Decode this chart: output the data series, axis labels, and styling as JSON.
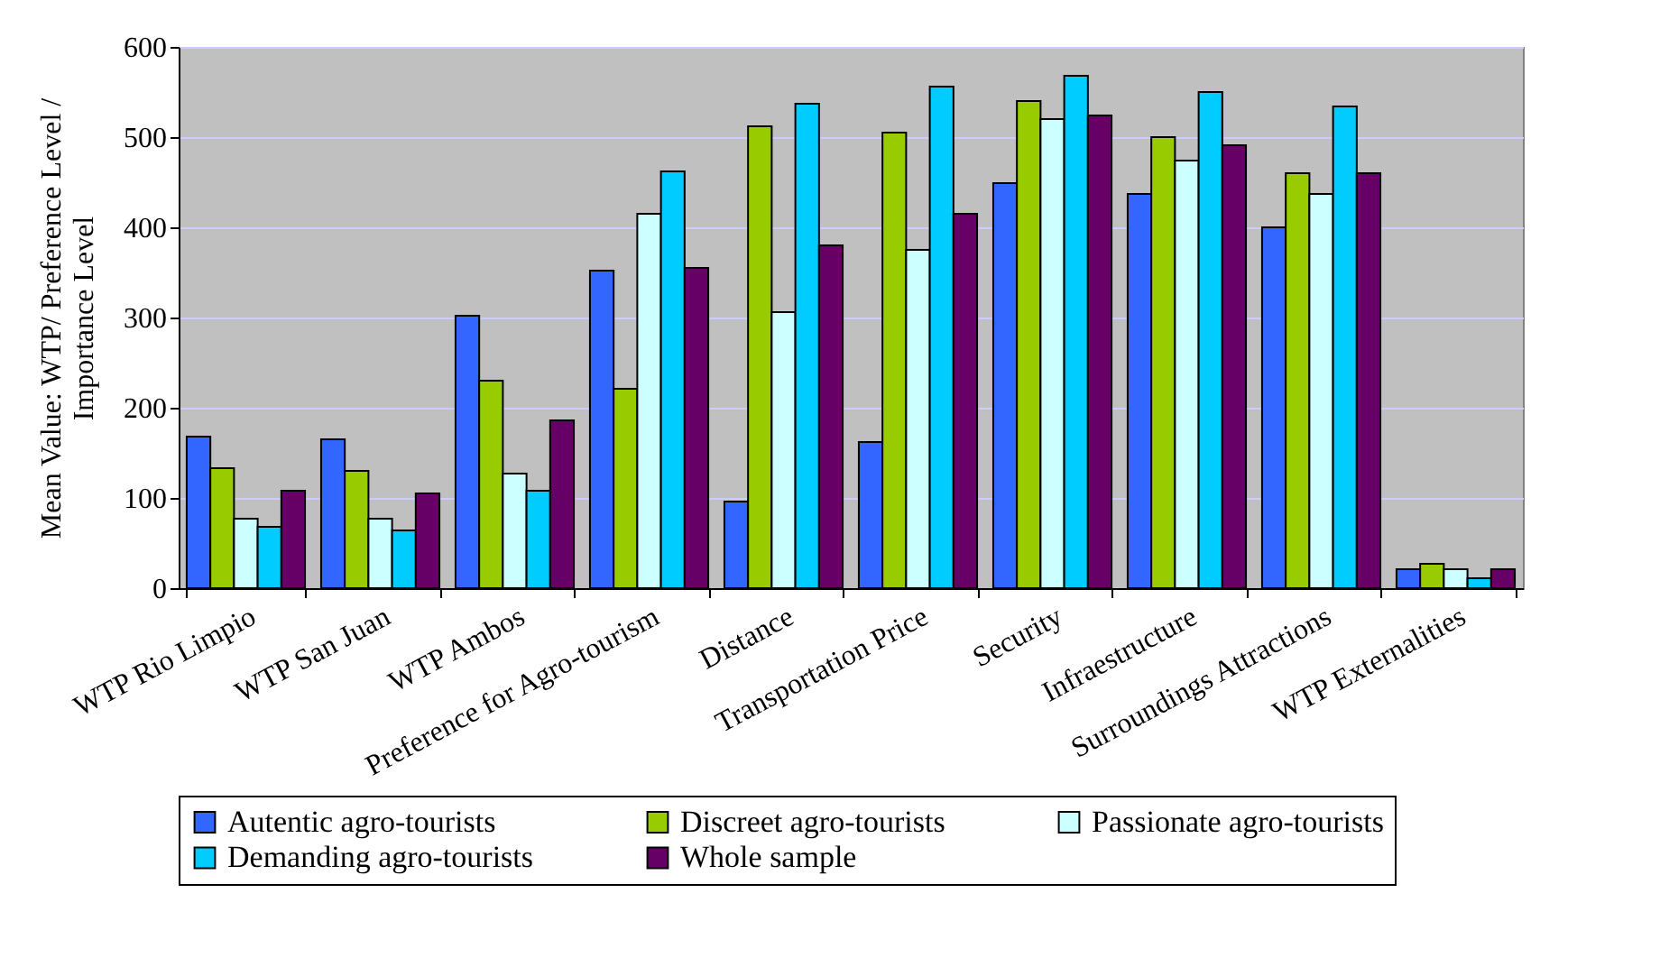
{
  "chart_data": {
    "type": "bar",
    "ylabel": "Mean Value: WTP/ Preference Level / Importance Level",
    "categories": [
      "WTP Rio Limpio",
      "WTP San Juan",
      "WTP Ambos",
      "Preference for Agro-tourism",
      "Distance",
      "Transportation Price",
      "Security",
      "Infraestructure",
      "Surroundings Attractions",
      "WTP Externalities"
    ],
    "series": [
      {
        "name": "Autentic agro-tourists",
        "color": "#3366ff",
        "values": [
          168,
          165,
          302,
          352,
          96,
          162,
          449,
          437,
          400,
          21
        ]
      },
      {
        "name": "Discreet agro-tourists",
        "color": "#99cc00",
        "values": [
          133,
          130,
          230,
          221,
          512,
          505,
          540,
          500,
          460,
          27
        ]
      },
      {
        "name": "Passionate agro-tourists",
        "color": "#ccffff",
        "values": [
          77,
          77,
          127,
          415,
          306,
          375,
          520,
          474,
          437,
          21
        ]
      },
      {
        "name": "Demanding agro-tourists",
        "color": "#00ccff",
        "values": [
          68,
          64,
          108,
          462,
          537,
          556,
          568,
          550,
          534,
          11
        ]
      },
      {
        "name": "Whole sample",
        "color": "#660066",
        "values": [
          108,
          105,
          186,
          355,
          380,
          415,
          524,
          491,
          460,
          21
        ]
      }
    ],
    "ylim": [
      0,
      600
    ],
    "yticks": [
      0,
      100,
      200,
      300,
      400,
      500,
      600
    ],
    "grid": "y",
    "legend": "bottom"
  }
}
